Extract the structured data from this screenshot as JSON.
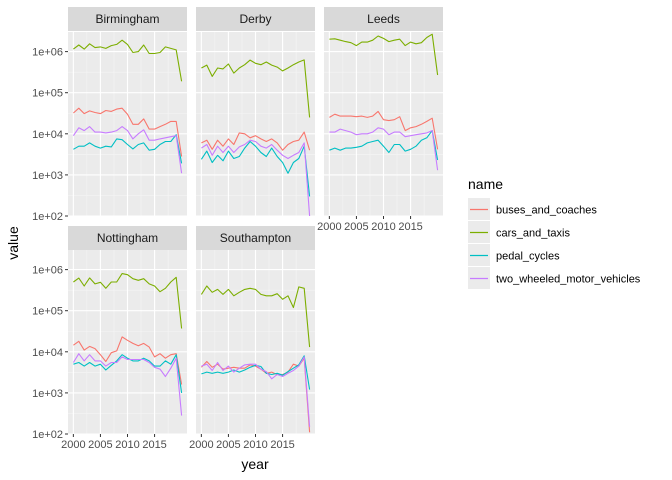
{
  "chart_data": {
    "type": "line",
    "xlabel": "year",
    "ylabel": "value",
    "y_scale": "log10",
    "ylim": [
      100,
      3000000
    ],
    "xlim": [
      2000,
      2020
    ],
    "x_ticks": [
      2000,
      2005,
      2010,
      2015
    ],
    "x_tick_labels": [
      "2000",
      "2005",
      "2010",
      "2015"
    ],
    "y_ticks": [
      100,
      1000,
      10000,
      100000,
      1000000
    ],
    "y_tick_labels": [
      "1e+02",
      "1e+03",
      "1e+04",
      "1e+05",
      "1e+06"
    ],
    "grid": true,
    "legend": {
      "title": "name",
      "position": "right",
      "entries": [
        "buses_and_coaches",
        "cars_and_taxis",
        "pedal_cycles",
        "two_wheeled_motor_vehicles"
      ]
    },
    "colors": {
      "buses_and_coaches": "#F8766D",
      "cars_and_taxis": "#7CAE00",
      "pedal_cycles": "#00BFC4",
      "two_wheeled_motor_vehicles": "#C77CFF"
    },
    "x": [
      2000,
      2001,
      2002,
      2003,
      2004,
      2005,
      2006,
      2007,
      2008,
      2009,
      2010,
      2011,
      2012,
      2013,
      2014,
      2015,
      2016,
      2017,
      2018,
      2019,
      2020
    ],
    "facets": [
      {
        "name": "Birmingham",
        "series": [
          {
            "name": "buses_and_coaches",
            "values": [
              32000,
              42000,
              31000,
              36000,
              33000,
              31000,
              37000,
              35000,
              40000,
              42000,
              30000,
              17000,
              17000,
              23000,
              13000,
              13000,
              15000,
              17000,
              20000,
              20000,
              2800
            ]
          },
          {
            "name": "cars_and_taxis",
            "values": [
              1150000,
              1450000,
              1150000,
              1550000,
              1250000,
              1300000,
              1200000,
              1400000,
              1500000,
              1900000,
              1500000,
              950000,
              1000000,
              1450000,
              900000,
              900000,
              950000,
              1300000,
              1200000,
              1100000,
              190000
            ]
          },
          {
            "name": "pedal_cycles",
            "values": [
              4200,
              5000,
              5000,
              6000,
              5000,
              4500,
              5000,
              4800,
              7500,
              7200,
              5500,
              4300,
              5500,
              6000,
              4000,
              4200,
              5500,
              6500,
              6500,
              9500,
              1900
            ]
          },
          {
            "name": "two_wheeled_motor_vehicles",
            "values": [
              9000,
              14000,
              12000,
              15000,
              11000,
              11000,
              10500,
              11000,
              12000,
              15000,
              12000,
              7500,
              10000,
              12500,
              7000,
              7000,
              7500,
              8000,
              8500,
              9000,
              1100
            ]
          }
        ]
      },
      {
        "name": "Derby",
        "series": [
          {
            "name": "buses_and_coaches",
            "values": [
              6000,
              7000,
              4200,
              7000,
              5000,
              7500,
              5500,
              10500,
              10000,
              8000,
              9000,
              7500,
              6500,
              7500,
              6000,
              4000,
              5500,
              6500,
              7000,
              11000,
              4000
            ]
          },
          {
            "name": "cars_and_taxis",
            "values": [
              400000,
              470000,
              250000,
              400000,
              380000,
              500000,
              300000,
              400000,
              480000,
              620000,
              520000,
              480000,
              560000,
              470000,
              420000,
              340000,
              400000,
              480000,
              560000,
              630000,
              25000
            ]
          },
          {
            "name": "pedal_cycles",
            "values": [
              2400,
              3800,
              2000,
              3000,
              2200,
              3800,
              2500,
              2800,
              4500,
              6500,
              5000,
              3500,
              2800,
              4500,
              2800,
              2000,
              1100,
              2000,
              2500,
              5000,
              300
            ]
          },
          {
            "name": "two_wheeled_motor_vehicles",
            "values": [
              4500,
              5500,
              3000,
              5000,
              3500,
              5000,
              3500,
              4800,
              5500,
              7000,
              6500,
              5000,
              4500,
              5500,
              4000,
              3000,
              2500,
              3000,
              3500,
              6000,
              100
            ]
          }
        ]
      },
      {
        "name": "Leeds",
        "series": [
          {
            "name": "buses_and_coaches",
            "values": [
              25000,
              30000,
              27000,
              27000,
              27000,
              26000,
              27000,
              25000,
              27000,
              35000,
              22000,
              21000,
              22000,
              26000,
              12000,
              14000,
              15000,
              17000,
              20000,
              24000,
              4200
            ]
          },
          {
            "name": "cars_and_taxis",
            "values": [
              2000000,
              2050000,
              1900000,
              1750000,
              1650000,
              1400000,
              1700000,
              1700000,
              1900000,
              2400000,
              2100000,
              1750000,
              1900000,
              2000000,
              1400000,
              1700000,
              1550000,
              1650000,
              2200000,
              2650000,
              270000
            ]
          },
          {
            "name": "pedal_cycles",
            "values": [
              4000,
              4500,
              4000,
              4500,
              4500,
              4700,
              5000,
              6000,
              6500,
              7000,
              5000,
              3500,
              5500,
              5500,
              3800,
              4200,
              5000,
              7000,
              8000,
              12000,
              2300
            ]
          },
          {
            "name": "two_wheeled_motor_vehicles",
            "values": [
              11000,
              11000,
              13000,
              12000,
              11000,
              9500,
              10000,
              10000,
              11000,
              14000,
              13000,
              9500,
              11000,
              11000,
              8500,
              9000,
              9500,
              10000,
              10500,
              12000,
              1300
            ]
          }
        ]
      },
      {
        "name": "Nottingham",
        "series": [
          {
            "name": "buses_and_coaches",
            "values": [
              14500,
              18000,
              11000,
              13500,
              12000,
              8500,
              5800,
              9500,
              10500,
              23000,
              19000,
              16000,
              14000,
              16000,
              13000,
              7500,
              9000,
              7000,
              8500,
              9000,
              1600
            ]
          },
          {
            "name": "cars_and_taxis",
            "values": [
              500000,
              620000,
              400000,
              630000,
              450000,
              490000,
              350000,
              500000,
              500000,
              800000,
              750000,
              600000,
              550000,
              600000,
              450000,
              400000,
              290000,
              350000,
              500000,
              650000,
              37000
            ]
          },
          {
            "name": "pedal_cycles",
            "values": [
              5000,
              5500,
              4500,
              5500,
              4500,
              5000,
              3600,
              4700,
              6000,
              8500,
              7000,
              6000,
              6000,
              7000,
              6000,
              4500,
              4500,
              6000,
              5000,
              8500,
              1000
            ]
          },
          {
            "name": "two_wheeled_motor_vehicles",
            "values": [
              5500,
              9000,
              6000,
              8500,
              6000,
              6000,
              4500,
              5500,
              5500,
              7500,
              6500,
              6500,
              6500,
              6500,
              5500,
              4200,
              3800,
              2500,
              4000,
              7000,
              280
            ]
          }
        ]
      },
      {
        "name": "Southampton",
        "series": [
          {
            "name": "buses_and_coaches",
            "values": [
              4200,
              5800,
              4200,
              5000,
              3800,
              4000,
              4200,
              4000,
              4000,
              4800,
              4500,
              3800,
              3000,
              3200,
              2800,
              2800,
              3200,
              5000,
              4500,
              7000,
              110
            ]
          },
          {
            "name": "cars_and_taxis",
            "values": [
              250000,
              400000,
              280000,
              330000,
              250000,
              330000,
              230000,
              280000,
              330000,
              350000,
              330000,
              250000,
              230000,
              230000,
              260000,
              190000,
              230000,
              120000,
              380000,
              350000,
              13000
            ]
          },
          {
            "name": "pedal_cycles",
            "values": [
              2900,
              3200,
              3000,
              3200,
              3000,
              3200,
              3600,
              3200,
              3600,
              4200,
              4700,
              4400,
              3000,
              2800,
              3000,
              2700,
              3300,
              4000,
              4800,
              8000,
              1200
            ]
          },
          {
            "name": "two_wheeled_motor_vehicles",
            "values": [
              4500,
              5000,
              3500,
              5500,
              3500,
              4500,
              3200,
              4000,
              4800,
              5000,
              5000,
              3800,
              3300,
              2200,
              2800,
              2500,
              3000,
              3500,
              4500,
              7500,
              150
            ]
          }
        ]
      }
    ]
  }
}
